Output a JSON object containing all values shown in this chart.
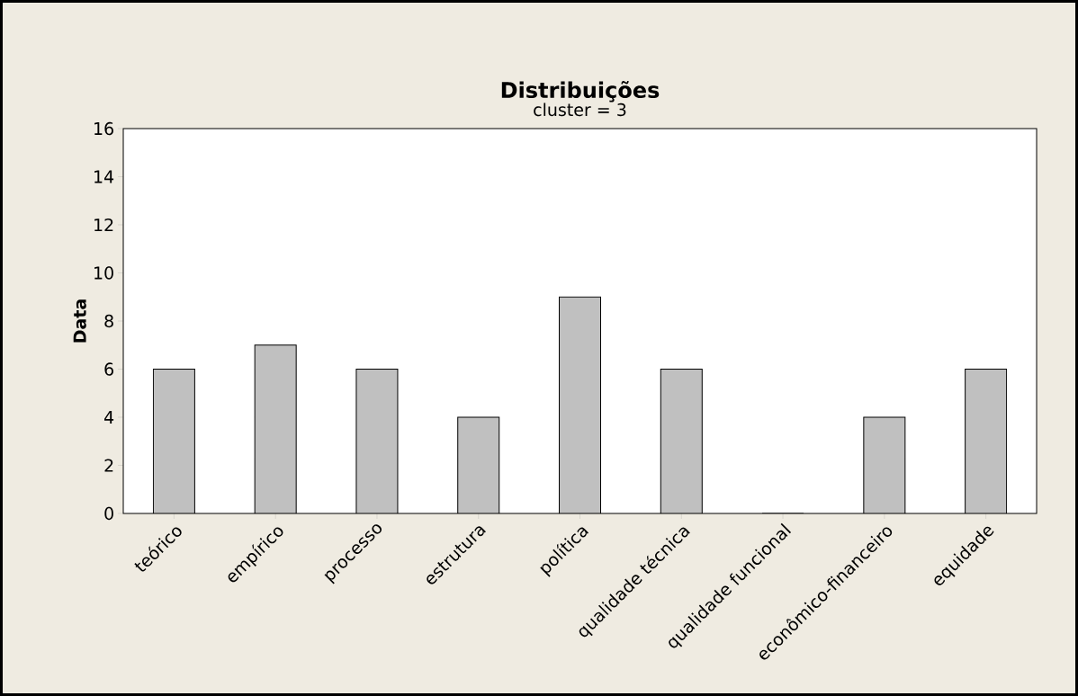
{
  "chart_data": {
    "type": "bar",
    "title": "Distribuições",
    "subtitle": "cluster = 3",
    "ylabel": "Data",
    "categories": [
      "teórico",
      "empírico",
      "processo",
      "estrutura",
      "política",
      "qualidade técnica",
      "qualidade funcional",
      "econômico-financeiro",
      "equidade"
    ],
    "values": [
      6,
      7,
      6,
      4,
      9,
      6,
      0,
      4,
      6
    ],
    "color": "#c0c0c0",
    "ylim": [
      0,
      16
    ],
    "yticks": [
      0,
      2,
      4,
      6,
      8,
      10,
      12,
      14,
      16
    ]
  }
}
